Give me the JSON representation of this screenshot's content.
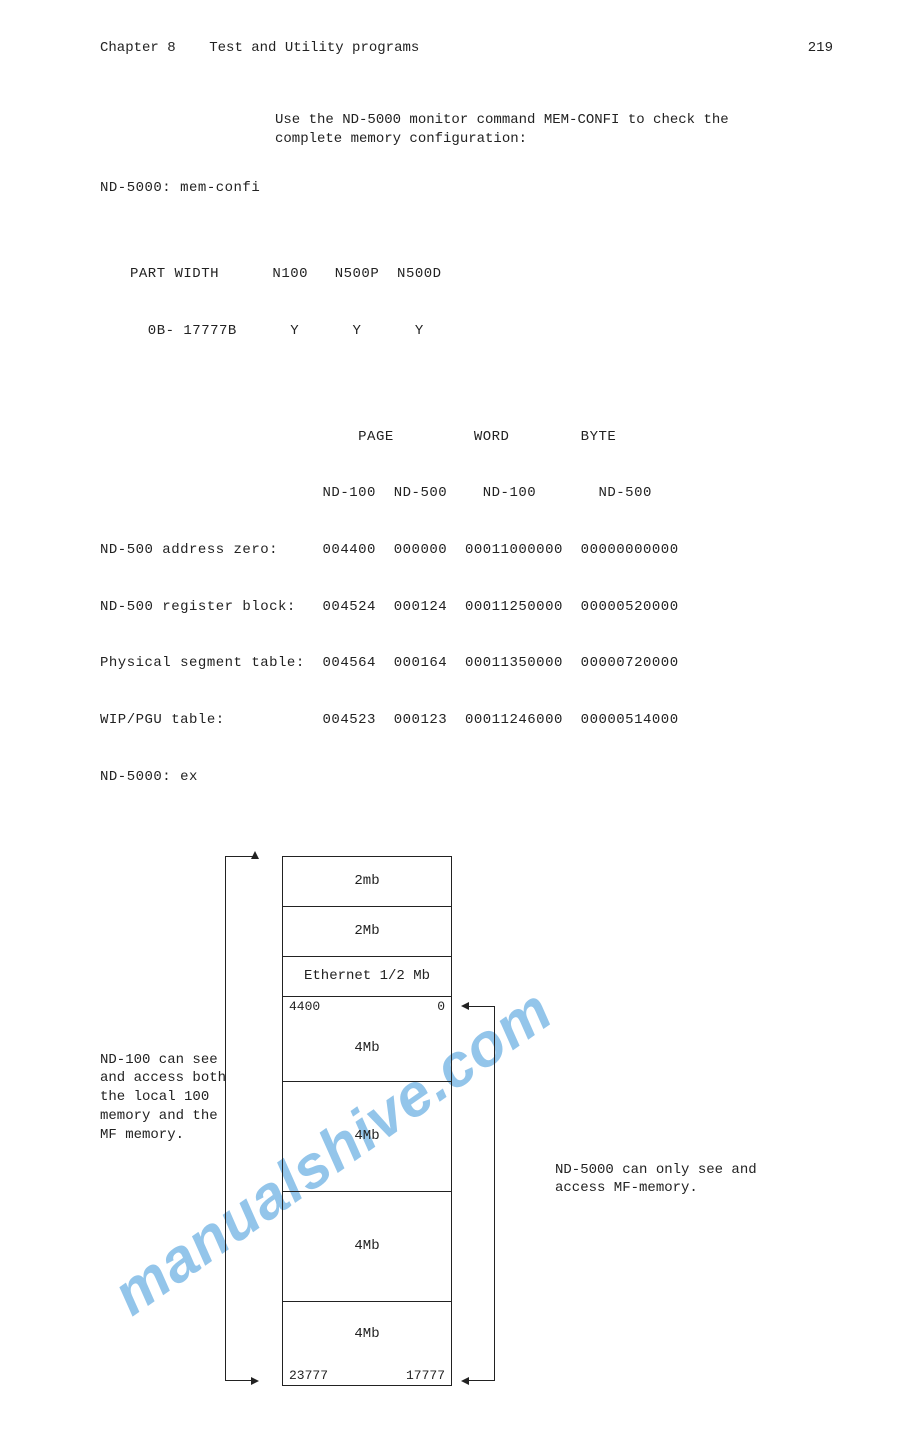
{
  "header": {
    "chapter": "Chapter 8",
    "title": "Test and Utility programs",
    "page_num": "219"
  },
  "intro": {
    "line1": "Use the ND-5000 monitor command MEM-CONFI to check the",
    "line2": "complete memory configuration:"
  },
  "prompt": "ND-5000: mem-confi",
  "part_width": {
    "row1": "PART WIDTH      N100   N500P  N500D",
    "row2": "  0B- 17777B      Y      Y      Y"
  },
  "addr_table": {
    "header1": "                             PAGE         WORD        BYTE",
    "header2": "                         ND-100  ND-500    ND-100       ND-500",
    "row1": "ND-500 address zero:     004400  000000  00011000000  00000000000",
    "row2": "ND-500 register block:   004524  000124  00011250000  00000520000",
    "row3": "Physical segment table:  004564  000164  00011350000  00000720000",
    "row4": "WIP/PGU table:           004523  000123  00011246000  00000514000",
    "row5": "ND-5000: ex"
  },
  "diagram": {
    "boxes": [
      {
        "label": "2mb"
      },
      {
        "label": "2Mb"
      },
      {
        "label": "Ethernet 1/2 Mb"
      },
      {
        "label": "4Mb",
        "top_left": "4400",
        "top_right": "0"
      },
      {
        "label": "4Mb"
      },
      {
        "label": "4Mb"
      },
      {
        "label": "4Mb",
        "bottom_left": "23777",
        "bottom_right": "17777"
      }
    ],
    "left_caption": "ND-100 can see and access both the local 100 memory and the MF memory.",
    "right_caption": "ND-5000 can only see and access MF-memory."
  },
  "watermark": "manualshive.com",
  "styling": {
    "font": "Courier New",
    "font_size_pt": 11,
    "text_color": "#222222",
    "background": "#ffffff",
    "watermark_color": "#5aa7e0",
    "watermark_font": "Arial",
    "watermark_rotation_deg": -35,
    "border_color": "#222222"
  }
}
